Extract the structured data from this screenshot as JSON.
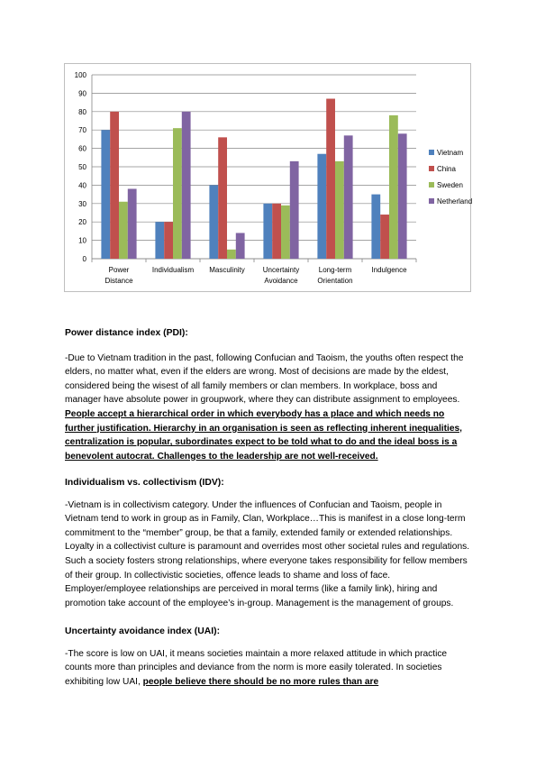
{
  "chart_data": {
    "type": "bar",
    "categories": [
      [
        "Power",
        "Distance"
      ],
      [
        "Individualism"
      ],
      [
        "Masculinity"
      ],
      [
        "Uncertainty",
        "Avoidance"
      ],
      [
        "Long-term",
        "Orientation"
      ],
      [
        "Indulgence"
      ]
    ],
    "series": [
      {
        "name": "Vietnam",
        "color": "#4f81bd",
        "values": [
          70,
          20,
          40,
          30,
          57,
          35
        ]
      },
      {
        "name": "China",
        "color": "#c0504d",
        "values": [
          80,
          20,
          66,
          30,
          87,
          24
        ]
      },
      {
        "name": "Sweden",
        "color": "#9bbb59",
        "values": [
          31,
          71,
          5,
          29,
          53,
          78
        ]
      },
      {
        "name": "Netherland",
        "color": "#8064a2",
        "values": [
          38,
          80,
          14,
          53,
          67,
          68
        ]
      }
    ],
    "ylim": [
      0,
      100
    ],
    "yticks": [
      0,
      10,
      20,
      30,
      40,
      50,
      60,
      70,
      80,
      90,
      100
    ],
    "grid": true,
    "legend": "right"
  },
  "sections": {
    "pdi": {
      "heading": "Power distance index (PDI):",
      "body": "-Due to Vietnam tradition in the past, following Confucian and Taoism, the youths often respect the elders, no matter what, even if the elders are wrong. Most of decisions are made by the eldest, considered being the wisest of all family members or clan members. In workplace, boss and manager have absolute power in groupwork, where they can distribute assignment to employees. ",
      "emphasis": "People accept a hierarchical order in which everybody has a place and which needs no further justification. Hierarchy in an organisation is seen as reflecting inherent inequalities, centralization is popular, subordinates expect to be told what to do and the ideal boss is a benevolent autocrat. Challenges to the leadership are not well-received."
    },
    "idv": {
      "heading": "Individualism vs. collectivism (IDV):",
      "body": "-Vietnam is in collectivism category. Under the influences of Confucian and Taoism, people in Vietnam tend to work in group as in Family, Clan, Workplace…This is manifest in a close long-term commitment to the “member” group, be that a family, extended family or extended relationships. Loyalty in a collectivist culture is paramount and overrides most other societal rules and regulations. Such a society fosters strong relationships, where everyone takes responsibility for fellow members of their group. In collectivistic societies, offence leads to shame and loss of face. Employer/employee relationships are perceived in moral terms (like a family link), hiring and promotion take account of the employee’s in-group. Management is the management of groups."
    },
    "uai": {
      "heading": "Uncertainty avoidance index (UAI):",
      "body": "-The score is low on UAI, it means societies maintain a more relaxed attitude in which practice counts more than principles and deviance from the norm is more easily tolerated. In societies exhibiting low UAI, ",
      "emphasis": "people believe there should be no more rules than are"
    }
  }
}
